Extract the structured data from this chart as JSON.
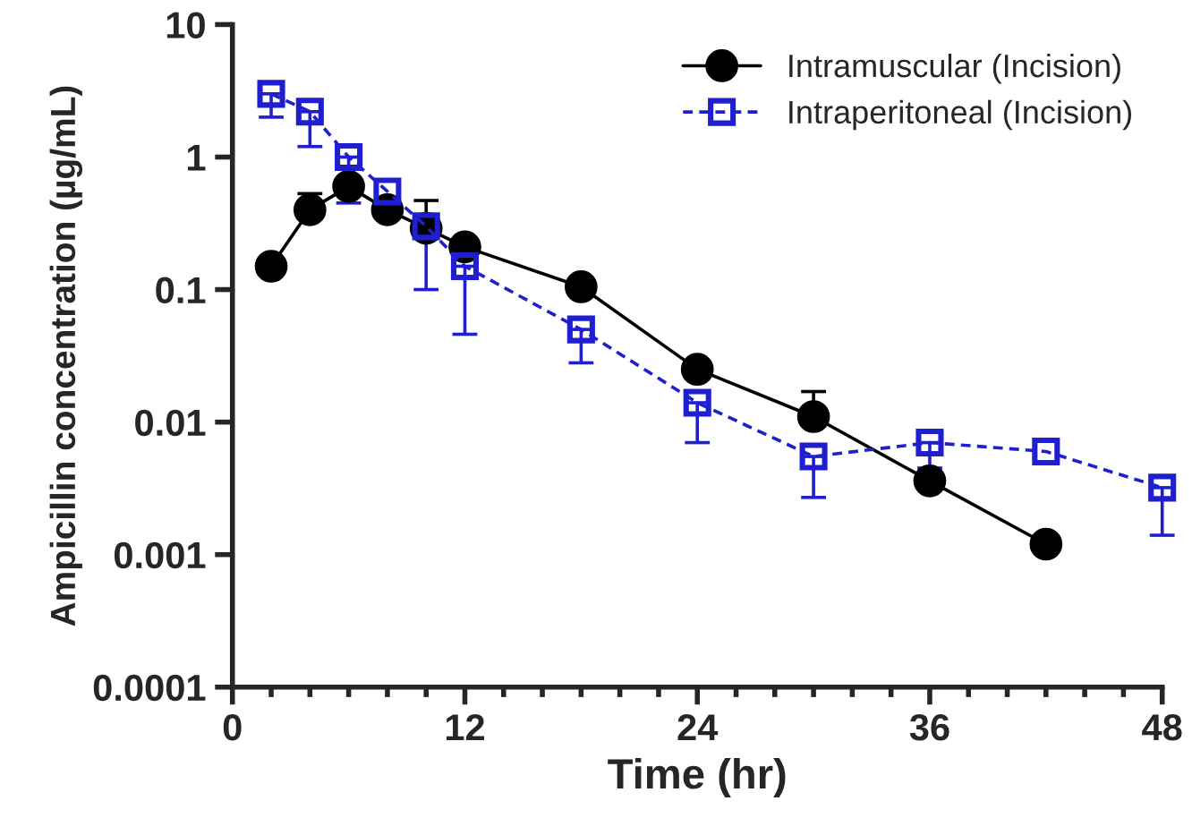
{
  "chart_data": {
    "type": "line",
    "xlabel": "Time (hr)",
    "ylabel": "Ampicillin concentration (µg/mL)",
    "log": "y",
    "xlim": [
      0,
      48
    ],
    "ylim": [
      0.0001,
      10
    ],
    "xticks": [
      0,
      {
        "value": 2,
        "label": null
      },
      {
        "value": 4,
        "label": null
      },
      {
        "value": 6,
        "label": null
      },
      {
        "value": 8,
        "label": null
      },
      {
        "value": 10,
        "label": null
      },
      12,
      {
        "value": 14,
        "label": null
      },
      {
        "value": 16,
        "label": null
      },
      {
        "value": 18,
        "label": null
      },
      {
        "value": 20,
        "label": null
      },
      {
        "value": 22,
        "label": null
      },
      24,
      {
        "value": 26,
        "label": null
      },
      {
        "value": 28,
        "label": null
      },
      {
        "value": 30,
        "label": null
      },
      {
        "value": 32,
        "label": null
      },
      {
        "value": 34,
        "label": null
      },
      36,
      {
        "value": 38,
        "label": null
      },
      {
        "value": 40,
        "label": null
      },
      {
        "value": 42,
        "label": null
      },
      {
        "value": 44,
        "label": null
      },
      {
        "value": 46,
        "label": null
      },
      48
    ],
    "yticks": [
      0.0001,
      0.001,
      0.01,
      0.1,
      1,
      10
    ],
    "grid": false,
    "legend": "top right",
    "series": [
      {
        "name": "Intramuscular (Incision)",
        "color": "#000000",
        "marker": "circle",
        "line_style": "solid",
        "x": [
          2,
          4,
          6,
          8,
          10,
          12,
          18,
          24,
          30,
          36,
          42
        ],
        "values": [
          0.15,
          0.4,
          0.6,
          0.4,
          0.29,
          0.21,
          0.105,
          0.025,
          0.011,
          0.0036,
          0.0012
        ],
        "errors": [
          null,
          [
            0.4,
            0.53
          ],
          [
            0.6,
            0.85
          ],
          null,
          [
            0.29,
            0.47
          ],
          null,
          null,
          null,
          [
            0.011,
            0.017
          ],
          null,
          null
        ]
      },
      {
        "name": "Intraperitoneal (Incision)",
        "color": "#1f1fd0",
        "marker": "square",
        "line_style": "dashed",
        "x": [
          2,
          4,
          6,
          8,
          10,
          12,
          18,
          24,
          30,
          36,
          42,
          48
        ],
        "values": [
          3.0,
          2.2,
          1.0,
          0.55,
          0.3,
          0.15,
          0.05,
          0.014,
          0.0055,
          0.007,
          0.006,
          0.0032
        ],
        "errors": [
          [
            2.0,
            3.0
          ],
          [
            1.2,
            2.2
          ],
          [
            0.45,
            1.0
          ],
          null,
          [
            0.1,
            0.3
          ],
          [
            0.046,
            0.15
          ],
          [
            0.028,
            0.05
          ],
          [
            0.007,
            0.014
          ],
          [
            0.0027,
            0.0055
          ],
          [
            0.0045,
            0.007
          ],
          null,
          [
            0.0014,
            0.0032
          ]
        ]
      }
    ]
  }
}
